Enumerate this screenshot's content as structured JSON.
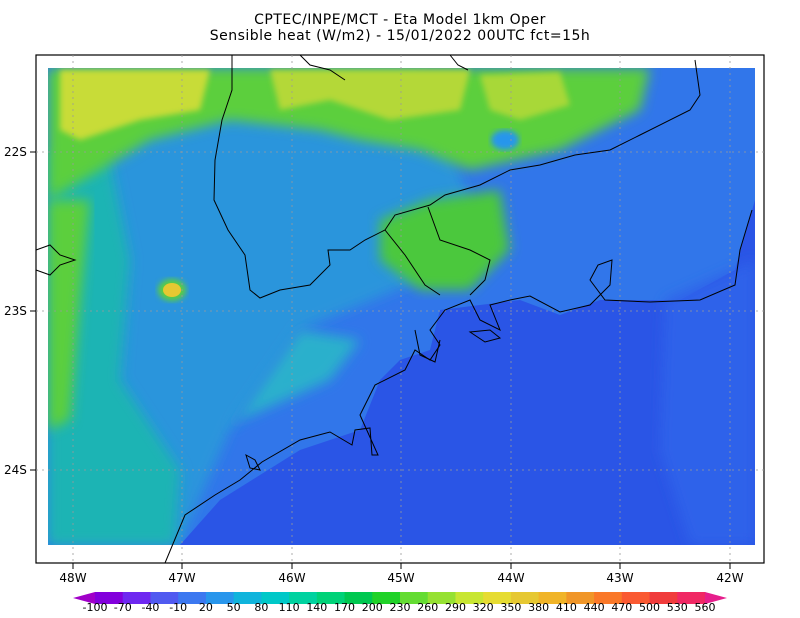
{
  "header": {
    "line1": "CPTEC/INPE/MCT -  Eta Model 1km Oper",
    "line2": "Sensible heat (W/m2) - 15/01/2022 00UTC fct=15h"
  },
  "map": {
    "lat_ticks": [
      {
        "label": "22S",
        "value": -22
      },
      {
        "label": "23S",
        "value": -23
      },
      {
        "label": "24S",
        "value": -24
      }
    ],
    "lon_ticks": [
      {
        "label": "48W",
        "value": -48
      },
      {
        "label": "47W",
        "value": -47
      },
      {
        "label": "46W",
        "value": -46
      },
      {
        "label": "45W",
        "value": -45
      },
      {
        "label": "44W",
        "value": -44
      },
      {
        "label": "43W",
        "value": -43
      },
      {
        "label": "42W",
        "value": -42
      }
    ]
  },
  "colorbar": {
    "labels": [
      "-100",
      "-70",
      "-40",
      "-10",
      "20",
      "50",
      "80",
      "110",
      "140",
      "170",
      "200",
      "230",
      "260",
      "290",
      "320",
      "350",
      "380",
      "410",
      "440",
      "470",
      "500",
      "530",
      "560"
    ],
    "colors": [
      "#a000c8",
      "#8200dc",
      "#6e28f0",
      "#505af0",
      "#3c78f0",
      "#2896ec",
      "#10b4dc",
      "#00c8c8",
      "#00d2a0",
      "#00d278",
      "#00c850",
      "#20d228",
      "#64dc32",
      "#96e132",
      "#c8e632",
      "#e6dc32",
      "#e6c832",
      "#f0b428",
      "#f09628",
      "#fa7828",
      "#fa5a32",
      "#f03c3c",
      "#f02864",
      "#e61e8c"
    ]
  },
  "colors": {
    "ocean": "#2a55e6",
    "land_blue": "#3176ea",
    "land_cyan": "#2a95dc",
    "land_teal": "#1eb4b4",
    "land_green": "#5ccf3c",
    "land_yellow": "#c8dc38",
    "hotspot": "#e6c832"
  }
}
